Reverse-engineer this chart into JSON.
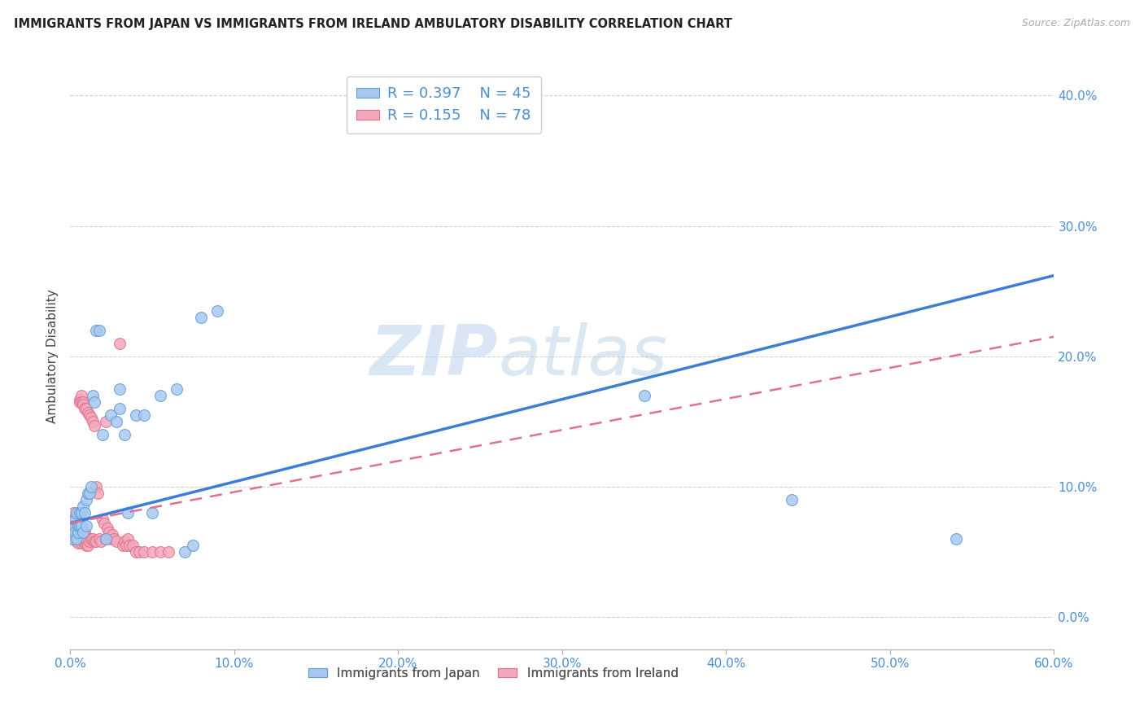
{
  "title": "IMMIGRANTS FROM JAPAN VS IMMIGRANTS FROM IRELAND AMBULATORY DISABILITY CORRELATION CHART",
  "source": "Source: ZipAtlas.com",
  "ylabel": "Ambulatory Disability",
  "xlim": [
    0.0,
    0.6
  ],
  "ylim": [
    -0.025,
    0.425
  ],
  "xticks": [
    0.0,
    0.1,
    0.2,
    0.3,
    0.4,
    0.5,
    0.6
  ],
  "xticklabels": [
    "0.0%",
    "10.0%",
    "20.0%",
    "30.0%",
    "40.0%",
    "50.0%",
    "60.0%"
  ],
  "yticks": [
    0.0,
    0.1,
    0.2,
    0.3,
    0.4
  ],
  "yticklabels": [
    "0.0%",
    "10.0%",
    "20.0%",
    "30.0%",
    "40.0%"
  ],
  "japan_R": 0.397,
  "japan_N": 45,
  "ireland_R": 0.155,
  "ireland_N": 78,
  "japan_color": "#a8c8f0",
  "ireland_color": "#f4a8bc",
  "japan_edge_color": "#5a9fd4",
  "ireland_edge_color": "#e0708a",
  "japan_line_color": "#3a7fd4",
  "ireland_line_color": "#e07090",
  "background_color": "#ffffff",
  "watermark_zip": "ZIP",
  "watermark_atlas": "atlas",
  "japan_line_x0": 0.0,
  "japan_line_y0": 0.072,
  "japan_line_x1": 0.6,
  "japan_line_y1": 0.262,
  "ireland_line_x0": 0.0,
  "ireland_line_y0": 0.072,
  "ireland_line_x1": 0.6,
  "ireland_line_y1": 0.215,
  "japan_x": [
    0.001,
    0.002,
    0.002,
    0.003,
    0.003,
    0.004,
    0.004,
    0.005,
    0.005,
    0.006,
    0.006,
    0.007,
    0.007,
    0.008,
    0.008,
    0.009,
    0.01,
    0.01,
    0.011,
    0.012,
    0.013,
    0.014,
    0.015,
    0.016,
    0.018,
    0.02,
    0.022,
    0.025,
    0.028,
    0.03,
    0.033,
    0.035,
    0.04,
    0.045,
    0.05,
    0.055,
    0.065,
    0.07,
    0.075,
    0.08,
    0.09,
    0.35,
    0.44,
    0.54,
    0.03
  ],
  "japan_y": [
    0.065,
    0.06,
    0.07,
    0.065,
    0.075,
    0.06,
    0.08,
    0.065,
    0.07,
    0.08,
    0.07,
    0.08,
    0.07,
    0.085,
    0.065,
    0.08,
    0.09,
    0.07,
    0.095,
    0.095,
    0.1,
    0.17,
    0.165,
    0.22,
    0.22,
    0.14,
    0.06,
    0.155,
    0.15,
    0.16,
    0.14,
    0.08,
    0.155,
    0.155,
    0.08,
    0.17,
    0.175,
    0.05,
    0.055,
    0.23,
    0.235,
    0.17,
    0.09,
    0.06,
    0.175
  ],
  "ireland_x": [
    0.001,
    0.001,
    0.001,
    0.002,
    0.002,
    0.002,
    0.002,
    0.002,
    0.003,
    0.003,
    0.003,
    0.003,
    0.003,
    0.004,
    0.004,
    0.004,
    0.004,
    0.005,
    0.005,
    0.005,
    0.005,
    0.006,
    0.006,
    0.006,
    0.006,
    0.007,
    0.007,
    0.007,
    0.007,
    0.008,
    0.008,
    0.008,
    0.008,
    0.009,
    0.009,
    0.009,
    0.01,
    0.01,
    0.01,
    0.01,
    0.011,
    0.011,
    0.012,
    0.012,
    0.013,
    0.013,
    0.014,
    0.014,
    0.015,
    0.015,
    0.016,
    0.016,
    0.017,
    0.018,
    0.019,
    0.02,
    0.021,
    0.022,
    0.022,
    0.023,
    0.024,
    0.025,
    0.026,
    0.027,
    0.028,
    0.03,
    0.032,
    0.033,
    0.034,
    0.035,
    0.036,
    0.038,
    0.04,
    0.042,
    0.045,
    0.05,
    0.055,
    0.06
  ],
  "ireland_y": [
    0.07,
    0.075,
    0.065,
    0.07,
    0.075,
    0.065,
    0.08,
    0.06,
    0.075,
    0.068,
    0.06,
    0.07,
    0.065,
    0.075,
    0.068,
    0.063,
    0.058,
    0.073,
    0.067,
    0.062,
    0.057,
    0.073,
    0.167,
    0.165,
    0.06,
    0.17,
    0.165,
    0.06,
    0.057,
    0.165,
    0.163,
    0.06,
    0.058,
    0.16,
    0.065,
    0.06,
    0.16,
    0.058,
    0.055,
    0.06,
    0.157,
    0.055,
    0.155,
    0.058,
    0.153,
    0.06,
    0.15,
    0.06,
    0.147,
    0.058,
    0.1,
    0.058,
    0.095,
    0.06,
    0.058,
    0.075,
    0.072,
    0.15,
    0.06,
    0.068,
    0.065,
    0.06,
    0.063,
    0.06,
    0.058,
    0.21,
    0.055,
    0.058,
    0.055,
    0.06,
    0.055,
    0.055,
    0.05,
    0.05,
    0.05,
    0.05,
    0.05,
    0.05
  ]
}
